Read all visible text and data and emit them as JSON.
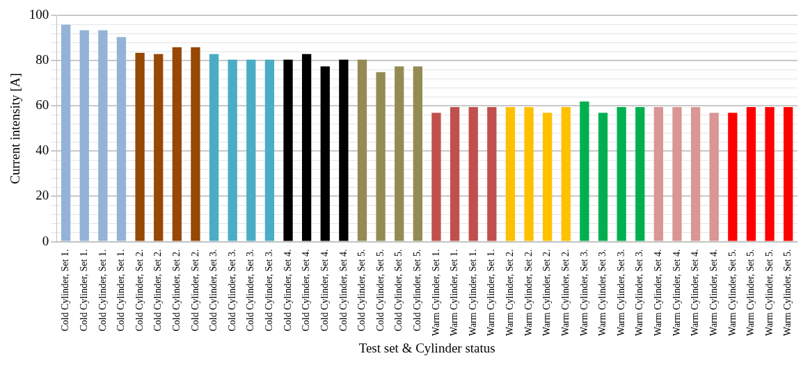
{
  "chart_data": {
    "type": "bar",
    "xlabel": "Test set & Cylinder status",
    "ylabel": "Current intensity [A]",
    "categories": [
      "Cold Cylinder, Set 1.",
      "Cold Cylinder, Set 1.",
      "Cold Cylinder, Set 1.",
      "Cold Cylinder, Set 1.",
      "Cold Cylinder, Set 2.",
      "Cold Cylinder, Set 2.",
      "Cold Cylinder, Set 2.",
      "Cold Cylinder, Set 2.",
      "Cold Cylinder, Set 3.",
      "Cold Cylinder, Set 3.",
      "Cold Cylinder, Set 3.",
      "Cold Cylinder, Set 3.",
      "Cold Cylinder, Set 4.",
      "Cold Cylinder, Set 4.",
      "Cold Cylinder, Set 4.",
      "Cold Cylinder, Set 4.",
      "Cold Cylinder, Set 5.",
      "Cold Cylinder, Set 5.",
      "Cold Cylinder, Set 5.",
      "Cold Cylinder, Set 5.",
      "Warm Cylinder, Set 1.",
      "Warm Cylinder, Set 1.",
      "Warm Cylinder, Set 1.",
      "Warm Cylinder, Set 1.",
      "Warm Cylinder, Set 2.",
      "Warm Cylinder, Set 2.",
      "Warm Cylinder, Set 2.",
      "Warm Cylinder, Set 2.",
      "Warm Cylinder, Set 3.",
      "Warm Cylinder, Set 3.",
      "Warm Cylinder, Set 3.",
      "Warm Cylinder, Set 3.",
      "Warm Cylinder, Set 4.",
      "Warm Cylinder, Set 4.",
      "Warm Cylinder, Set 4.",
      "Warm Cylinder, Set 4.",
      "Warm Cylinder, Set 5.",
      "Warm Cylinder, Set 5.",
      "Warm Cylinder, Set 5.",
      "Warm Cylinder, Set 5."
    ],
    "values": [
      96,
      93.5,
      93.5,
      90.5,
      83.5,
      83,
      86,
      86,
      83,
      80.5,
      80.5,
      80.5,
      80.5,
      83,
      77.5,
      80.5,
      80.5,
      75,
      77.5,
      77.5,
      57,
      59.5,
      59.5,
      59.5,
      59.5,
      59.5,
      57,
      59.5,
      62,
      57,
      59.5,
      59.5,
      59.5,
      59.5,
      59.5,
      57,
      57,
      59.5,
      59.5,
      59.5
    ],
    "colors": [
      "#95b3d7",
      "#95b3d7",
      "#95b3d7",
      "#95b3d7",
      "#974706",
      "#974706",
      "#974706",
      "#974706",
      "#4bacc6",
      "#4bacc6",
      "#4bacc6",
      "#4bacc6",
      "#000000",
      "#000000",
      "#000000",
      "#000000",
      "#948a54",
      "#948a54",
      "#948a54",
      "#948a54",
      "#c0504d",
      "#c0504d",
      "#c0504d",
      "#c0504d",
      "#ffc000",
      "#ffc000",
      "#ffc000",
      "#ffc000",
      "#00b050",
      "#00b050",
      "#00b050",
      "#00b050",
      "#d99694",
      "#d99694",
      "#d99694",
      "#d99694",
      "#ff0000",
      "#ff0000",
      "#ff0000",
      "#ff0000"
    ],
    "ylim": [
      0,
      100
    ],
    "yticks": [
      0,
      {
        "value": 4,
        "label": null
      },
      {
        "value": 8,
        "label": null
      },
      {
        "value": 12,
        "label": null
      },
      {
        "value": 16,
        "label": null
      },
      20,
      {
        "value": 24,
        "label": null
      },
      {
        "value": 28,
        "label": null
      },
      {
        "value": 32,
        "label": null
      },
      {
        "value": 36,
        "label": null
      },
      40,
      {
        "value": 44,
        "label": null
      },
      {
        "value": 48,
        "label": null
      },
      {
        "value": 52,
        "label": null
      },
      {
        "value": 56,
        "label": null
      },
      60,
      {
        "value": 64,
        "label": null
      },
      {
        "value": 68,
        "label": null
      },
      {
        "value": 72,
        "label": null
      },
      {
        "value": 76,
        "label": null
      },
      80,
      {
        "value": 84,
        "label": null
      },
      {
        "value": 88,
        "label": null
      },
      {
        "value": 92,
        "label": null
      },
      {
        "value": 96,
        "label": null
      },
      100
    ],
    "grid": "y",
    "legend": false
  }
}
